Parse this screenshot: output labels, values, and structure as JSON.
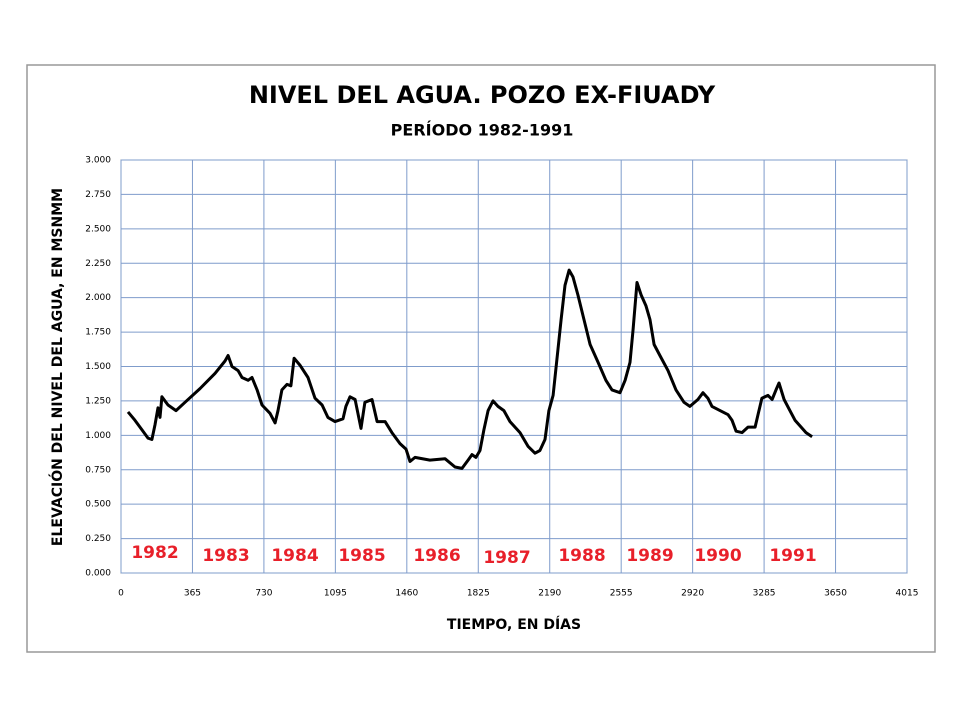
{
  "chart_data": {
    "type": "line",
    "title": "NIVEL DEL AGUA. POZO EX-FIUADY",
    "subtitle": "PERÍODO 1982-1991",
    "x_label": "TIEMPO, EN DÍAS",
    "y_label": "ELEVACIÓN DEL NIVEL DEL AGUA, EN MSNMM",
    "annotations": [
      "1982",
      "1983",
      "1984",
      "1985",
      "1986",
      "1987",
      "1988",
      "1989",
      "1990",
      "1991"
    ],
    "annotation_color": "#e8202a",
    "grid": true,
    "xlim": [
      0,
      4015
    ],
    "xticks": [
      0,
      365,
      730,
      1095,
      1460,
      1825,
      2190,
      2555,
      2920,
      3285,
      3650,
      4015
    ],
    "ylim": [
      0,
      3
    ],
    "yticks": [
      {
        "value": 0,
        "label": "0.000"
      },
      {
        "value": 0.25,
        "label": "0.250"
      },
      {
        "value": 0.5,
        "label": "0.500"
      },
      {
        "value": 0.75,
        "label": "0.750"
      },
      {
        "value": 1,
        "label": "1.000"
      },
      {
        "value": 1.25,
        "label": "1.250"
      },
      {
        "value": 1.5,
        "label": "1.500"
      },
      {
        "value": 1.75,
        "label": "1.750"
      },
      {
        "value": 2,
        "label": "2.000"
      },
      {
        "value": 2.25,
        "label": "2.250"
      },
      {
        "value": 2.5,
        "label": "2.500"
      },
      {
        "value": 2.75,
        "label": "2.750"
      },
      {
        "value": 3,
        "label": "3.000"
      }
    ],
    "color": "#000000",
    "x": [
      36,
      71,
      107,
      138,
      158,
      174,
      189,
      199,
      209,
      240,
      281,
      327,
      404,
      480,
      531,
      547,
      567,
      598,
      618,
      649,
      669,
      695,
      720,
      761,
      787,
      802,
      822,
      848,
      868,
      884,
      914,
      955,
      991,
      1027,
      1057,
      1093,
      1134,
      1149,
      1170,
      1196,
      1226,
      1246,
      1282,
      1308,
      1349,
      1384,
      1425,
      1456,
      1476,
      1502,
      1578,
      1655,
      1706,
      1742,
      1773,
      1793,
      1813,
      1834,
      1854,
      1875,
      1900,
      1926,
      1956,
      1987,
      2038,
      2079,
      2115,
      2140,
      2166,
      2186,
      2207,
      2232,
      2248,
      2268,
      2289,
      2309,
      2334,
      2365,
      2396,
      2437,
      2477,
      2508,
      2549,
      2575,
      2600,
      2616,
      2636,
      2657,
      2682,
      2702,
      2723,
      2753,
      2794,
      2835,
      2876,
      2906,
      2947,
      2973,
      2998,
      3019,
      3060,
      3101,
      3121,
      3142,
      3172,
      3203,
      3239,
      3254,
      3274,
      3305,
      3326,
      3346,
      3361,
      3387,
      3417,
      3443,
      3468,
      3499,
      3530
    ],
    "values": [
      1.17,
      1.11,
      1.04,
      0.98,
      0.97,
      1.08,
      1.2,
      1.13,
      1.28,
      1.22,
      1.18,
      1.24,
      1.34,
      1.45,
      1.54,
      1.58,
      1.5,
      1.47,
      1.42,
      1.4,
      1.42,
      1.33,
      1.22,
      1.16,
      1.09,
      1.18,
      1.33,
      1.37,
      1.36,
      1.56,
      1.51,
      1.42,
      1.27,
      1.22,
      1.13,
      1.1,
      1.12,
      1.21,
      1.28,
      1.26,
      1.05,
      1.24,
      1.26,
      1.1,
      1.1,
      1.02,
      0.94,
      0.9,
      0.81,
      0.84,
      0.82,
      0.83,
      0.77,
      0.76,
      0.82,
      0.86,
      0.84,
      0.89,
      1.04,
      1.18,
      1.25,
      1.21,
      1.18,
      1.1,
      1.02,
      0.92,
      0.87,
      0.89,
      0.97,
      1.18,
      1.29,
      1.62,
      1.84,
      2.09,
      2.2,
      2.15,
      2.02,
      1.84,
      1.66,
      1.53,
      1.4,
      1.33,
      1.31,
      1.4,
      1.53,
      1.77,
      2.11,
      2.02,
      1.94,
      1.84,
      1.66,
      1.58,
      1.47,
      1.33,
      1.24,
      1.21,
      1.26,
      1.31,
      1.27,
      1.21,
      1.18,
      1.15,
      1.11,
      1.03,
      1.02,
      1.06,
      1.06,
      1.15,
      1.27,
      1.29,
      1.26,
      1.33,
      1.38,
      1.26,
      1.18,
      1.11,
      1.07,
      1.02,
      0.99
    ]
  }
}
